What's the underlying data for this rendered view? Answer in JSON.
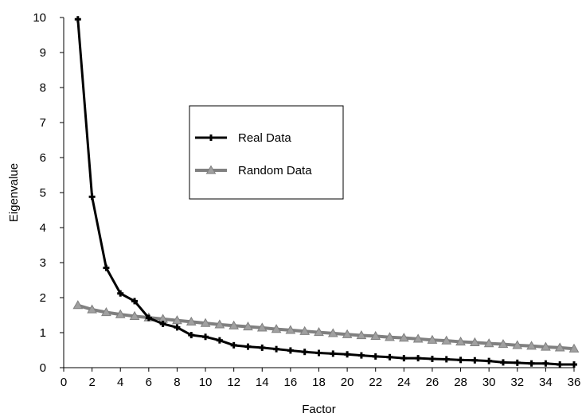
{
  "chart_data": {
    "type": "line",
    "title": "",
    "xlabel": "Factor",
    "ylabel": "Eigenvalue",
    "xlim": [
      0,
      36
    ],
    "ylim": [
      0,
      10
    ],
    "xticks": [
      0,
      2,
      4,
      6,
      8,
      10,
      12,
      14,
      16,
      18,
      20,
      22,
      24,
      26,
      28,
      30,
      32,
      34,
      36
    ],
    "yticks": [
      0,
      1,
      2,
      3,
      4,
      5,
      6,
      7,
      8,
      9,
      10
    ],
    "grid": false,
    "legend_position": "center",
    "x": [
      1,
      2,
      3,
      4,
      5,
      6,
      7,
      8,
      9,
      10,
      11,
      12,
      13,
      14,
      15,
      16,
      17,
      18,
      19,
      20,
      21,
      22,
      23,
      24,
      25,
      26,
      27,
      28,
      29,
      30,
      31,
      32,
      33,
      34,
      35,
      36
    ],
    "series": [
      {
        "name": "Real Data",
        "color": "#000000",
        "marker": "plus",
        "values": [
          9.95,
          4.88,
          2.85,
          2.12,
          1.9,
          1.42,
          1.25,
          1.15,
          0.93,
          0.88,
          0.78,
          0.64,
          0.6,
          0.57,
          0.53,
          0.49,
          0.45,
          0.42,
          0.4,
          0.38,
          0.35,
          0.32,
          0.3,
          0.27,
          0.27,
          0.25,
          0.24,
          0.22,
          0.21,
          0.19,
          0.15,
          0.14,
          0.12,
          0.12,
          0.09,
          0.09
        ]
      },
      {
        "name": "Random Data",
        "color": "#808080",
        "marker": "triangle",
        "values": [
          1.78,
          1.66,
          1.58,
          1.52,
          1.47,
          1.43,
          1.39,
          1.35,
          1.31,
          1.27,
          1.23,
          1.2,
          1.17,
          1.14,
          1.1,
          1.07,
          1.04,
          1.01,
          0.98,
          0.95,
          0.92,
          0.9,
          0.87,
          0.85,
          0.82,
          0.79,
          0.77,
          0.74,
          0.72,
          0.69,
          0.67,
          0.64,
          0.62,
          0.59,
          0.57,
          0.54
        ]
      }
    ]
  }
}
